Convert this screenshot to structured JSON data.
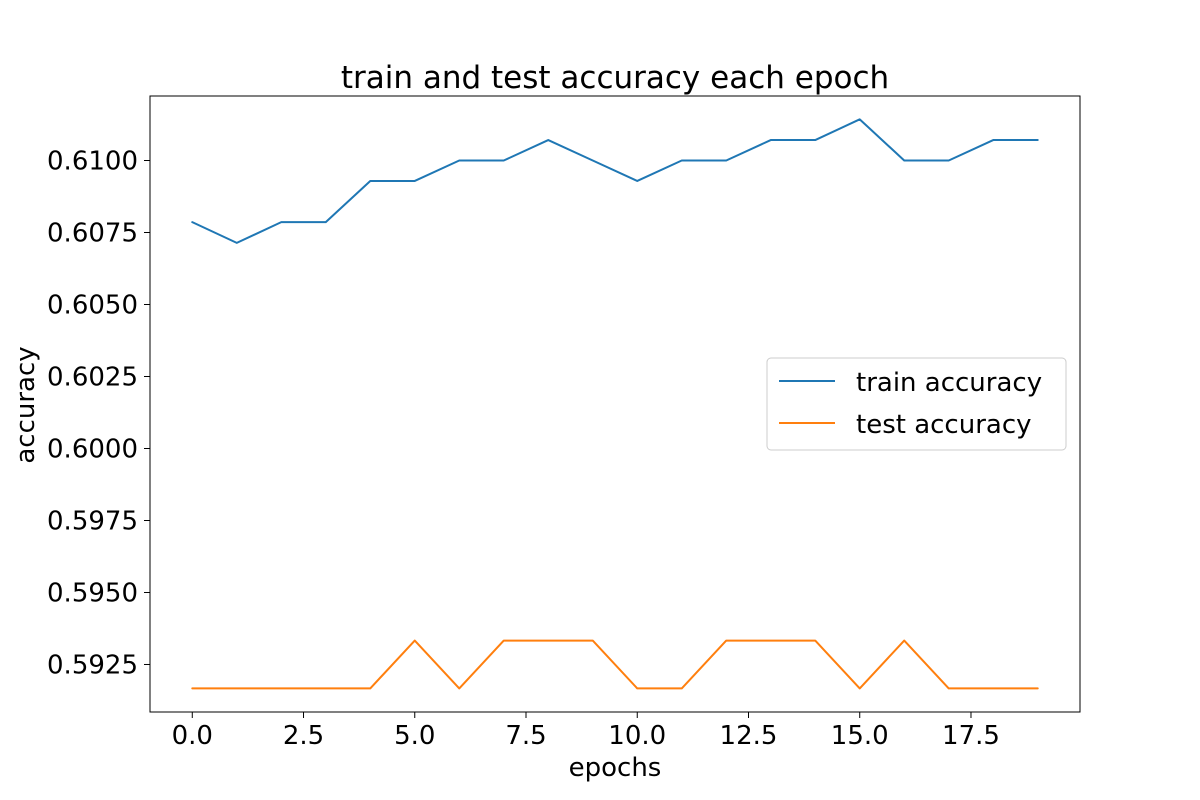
{
  "chart_data": {
    "type": "line",
    "title": "train and test accuracy each epoch",
    "xlabel": "epochs",
    "ylabel": "accuracy",
    "x": [
      0,
      1,
      2,
      3,
      4,
      5,
      6,
      7,
      8,
      9,
      10,
      11,
      12,
      13,
      14,
      15,
      16,
      17,
      18,
      19
    ],
    "series": [
      {
        "name": "train accuracy",
        "color": "#1f77b4",
        "values": [
          0.60786,
          0.60714,
          0.60786,
          0.60786,
          0.60929,
          0.60929,
          0.61,
          0.61,
          0.61071,
          0.61,
          0.60929,
          0.61,
          0.61,
          0.61071,
          0.61071,
          0.61143,
          0.61,
          0.61,
          0.61071,
          0.61071
        ]
      },
      {
        "name": "test accuracy",
        "color": "#ff7f0e",
        "values": [
          0.59167,
          0.59167,
          0.59167,
          0.59167,
          0.59167,
          0.59333,
          0.59167,
          0.59333,
          0.59333,
          0.59333,
          0.59167,
          0.59167,
          0.59333,
          0.59333,
          0.59333,
          0.59167,
          0.59333,
          0.59167,
          0.59167,
          0.59167
        ]
      }
    ],
    "xlim": [
      -0.95,
      19.95
    ],
    "ylim": [
      0.59085,
      0.61224
    ],
    "xticks": [
      0.0,
      2.5,
      5.0,
      7.5,
      10.0,
      12.5,
      15.0,
      17.5
    ],
    "xtick_labels": [
      "0.0",
      "2.5",
      "5.0",
      "7.5",
      "10.0",
      "12.5",
      "15.0",
      "17.5"
    ],
    "yticks": [
      0.5925,
      0.595,
      0.5975,
      0.6,
      0.6025,
      0.605,
      0.6075,
      0.61
    ],
    "ytick_labels": [
      "0.5925",
      "0.5950",
      "0.5975",
      "0.6000",
      "0.6025",
      "0.6050",
      "0.6075",
      "0.6100"
    ],
    "grid": false,
    "legend_position": "center-right"
  }
}
